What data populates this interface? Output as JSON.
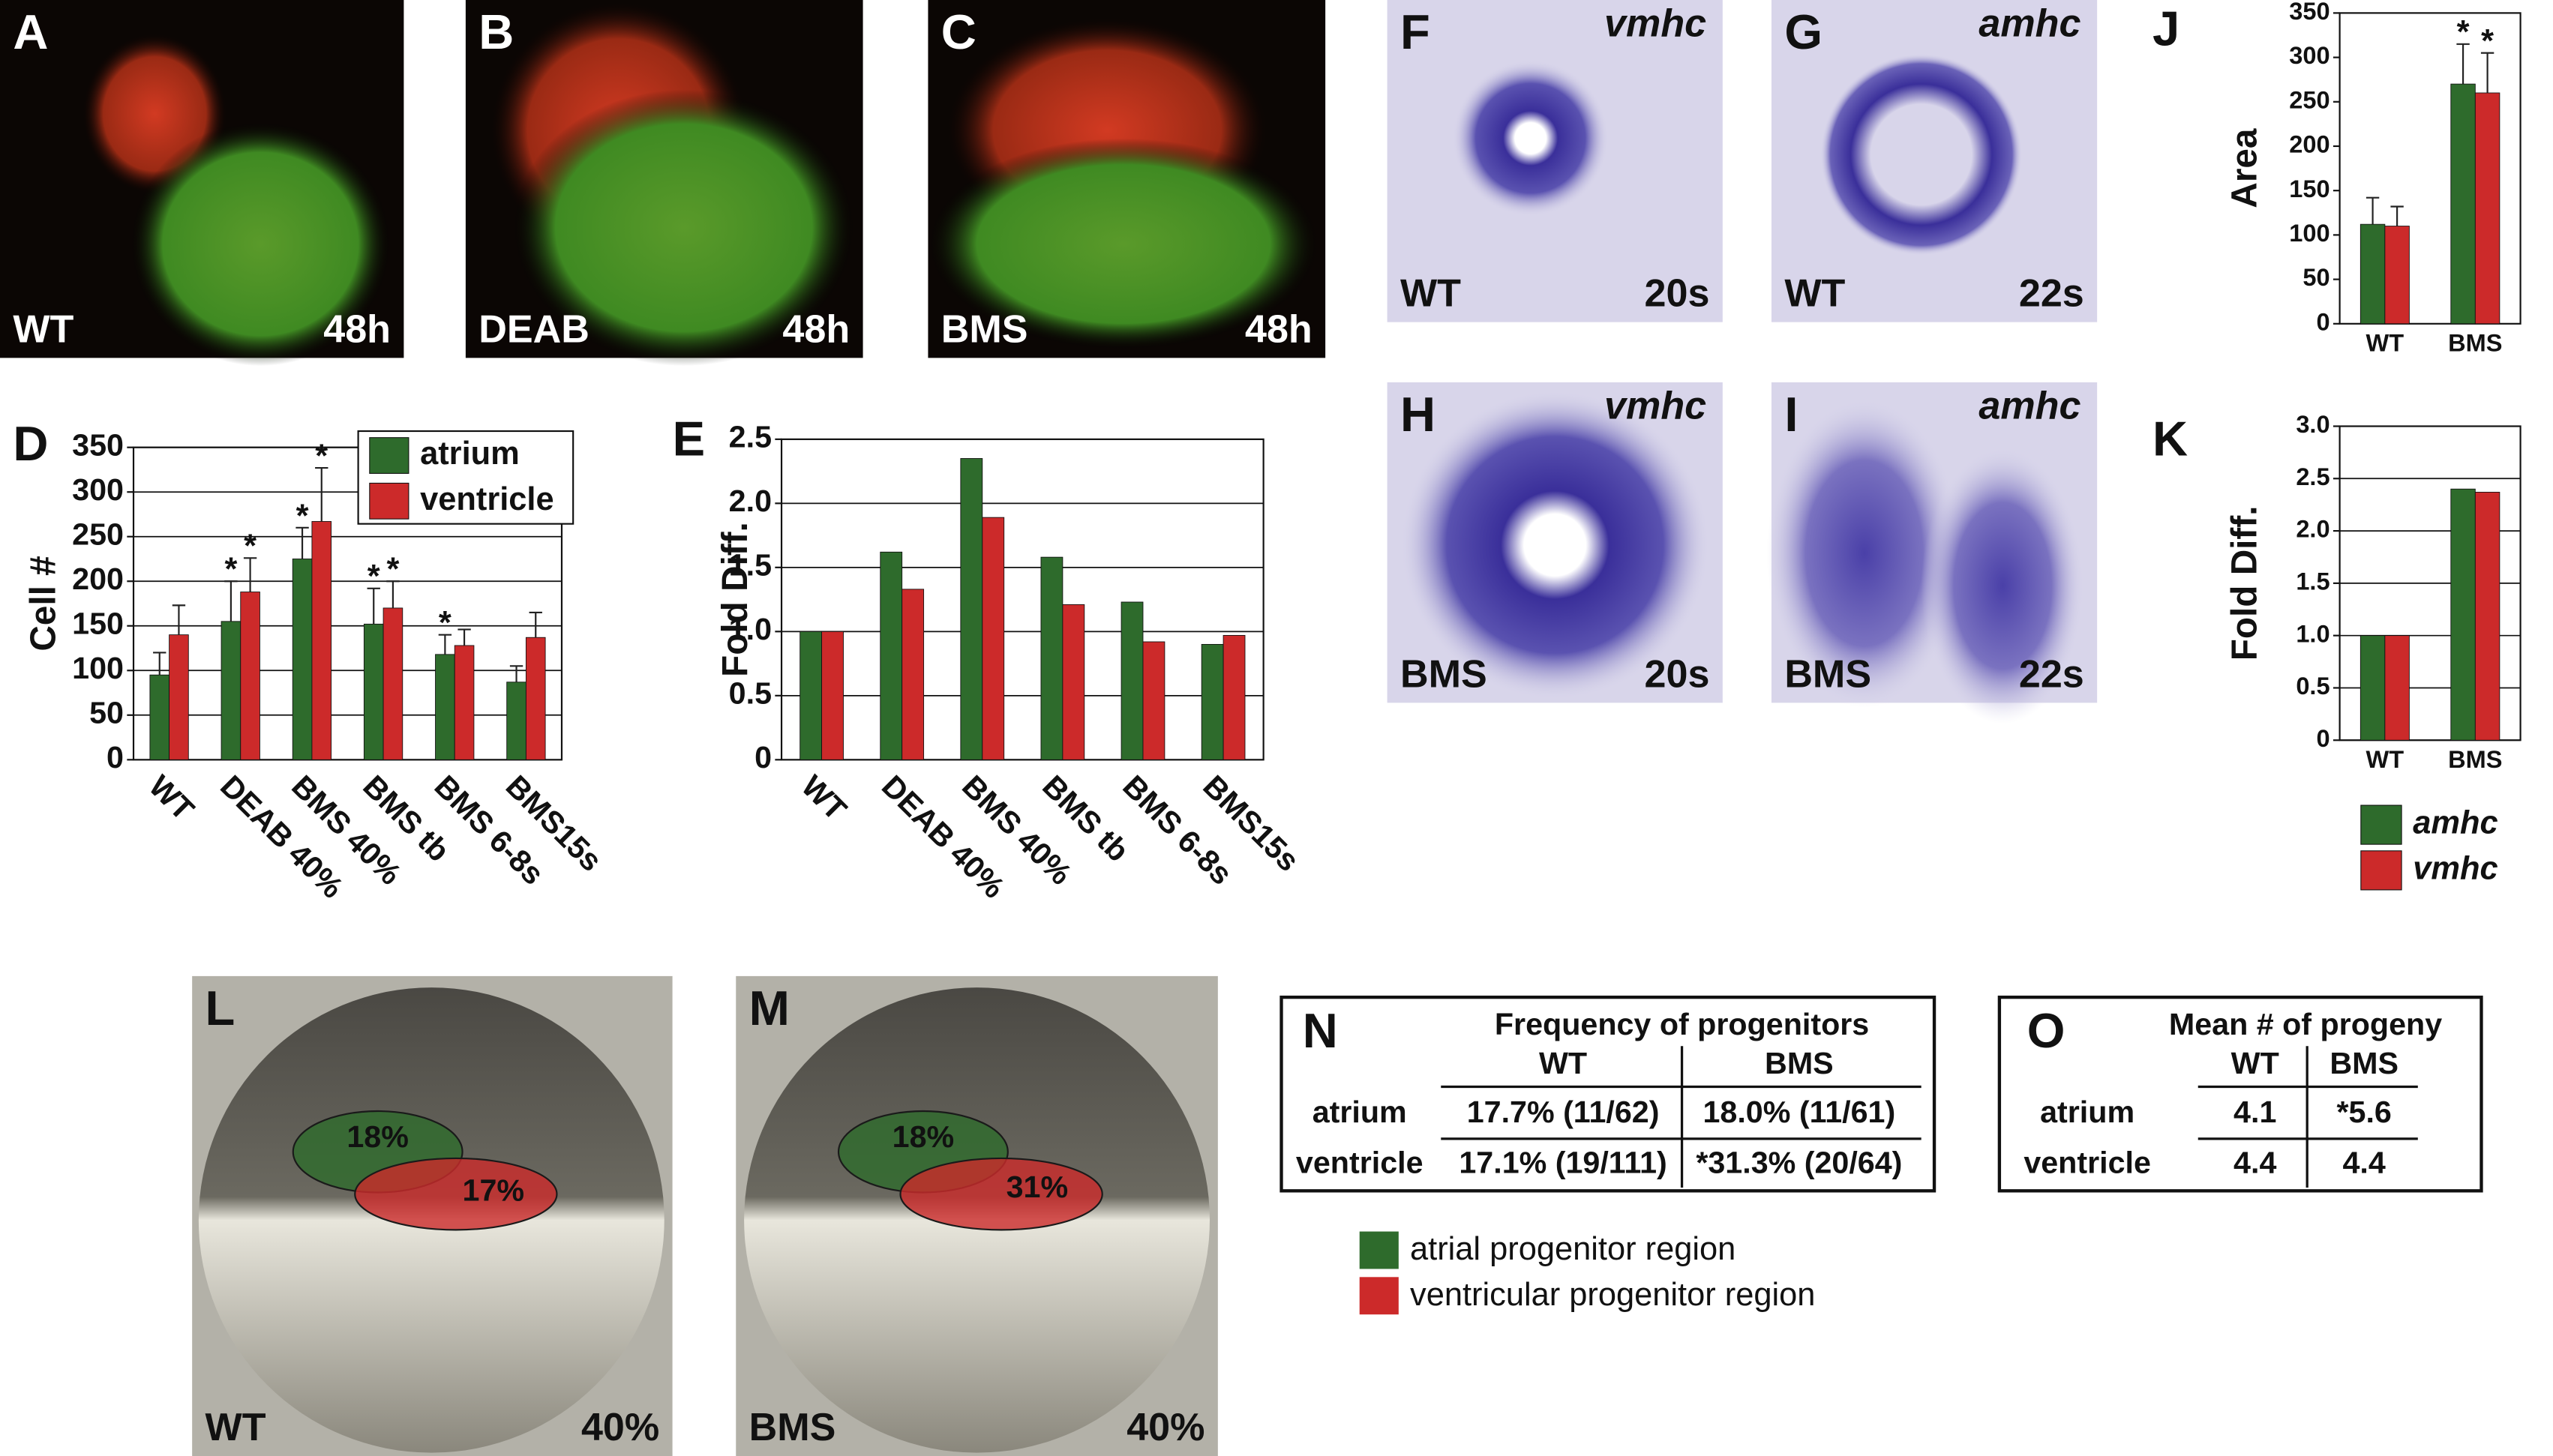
{
  "image_panels": [
    {
      "letter": "A",
      "left_label": "WT",
      "right_label": "48h"
    },
    {
      "letter": "B",
      "left_label": "DEAB",
      "right_label": "48h"
    },
    {
      "letter": "C",
      "left_label": "BMS",
      "right_label": "48h"
    },
    {
      "letter": "F",
      "gene": "vmhc",
      "left_label": "WT",
      "right_label": "20s"
    },
    {
      "letter": "G",
      "gene": "amhc",
      "left_label": "WT",
      "right_label": "22s"
    },
    {
      "letter": "H",
      "gene": "vmhc",
      "left_label": "BMS",
      "right_label": "20s"
    },
    {
      "letter": "I",
      "gene": "amhc",
      "left_label": "BMS",
      "right_label": "22s"
    },
    {
      "letter": "L",
      "left_label": "WT",
      "right_label": "40%",
      "regions": [
        "18%",
        "17%"
      ]
    },
    {
      "letter": "M",
      "left_label": "BMS",
      "right_label": "40%",
      "regions": [
        "18%",
        "31%"
      ]
    }
  ],
  "chart_data": [
    {
      "type": "bar",
      "letter": "D",
      "y_label": "Cell #",
      "categories": [
        "WT",
        "DEAB 40%",
        "BMS 40%",
        "BMS tb",
        "BMS 6-8s",
        "BMS15s"
      ],
      "series": [
        {
          "name": "atrium",
          "color": "#2e6b2c",
          "values": [
            95,
            155,
            225,
            152,
            118,
            87
          ],
          "errors": [
            25,
            45,
            35,
            40,
            22,
            18
          ],
          "significant": [
            false,
            true,
            true,
            true,
            true,
            false
          ]
        },
        {
          "name": "ventricle",
          "color": "#cc2a2a",
          "values": [
            140,
            188,
            267,
            170,
            128,
            137
          ],
          "errors": [
            33,
            38,
            60,
            30,
            18,
            28
          ],
          "significant": [
            false,
            true,
            true,
            true,
            false,
            false
          ]
        }
      ],
      "significance_mark": "*",
      "ylim": [
        0,
        350
      ],
      "yticks": [
        0,
        50,
        100,
        150,
        200,
        250,
        300,
        350
      ],
      "grid": true,
      "legend": "upper right"
    },
    {
      "type": "bar",
      "letter": "E",
      "y_label": "Fold Diff.",
      "categories": [
        "WT",
        "DEAB 40%",
        "BMS 40%",
        "BMS tb",
        "BMS 6-8s",
        "BMS15s"
      ],
      "series": [
        {
          "color": "#2e6b2c",
          "values": [
            1.0,
            1.62,
            2.35,
            1.58,
            1.23,
            0.9
          ]
        },
        {
          "color": "#cc2a2a",
          "values": [
            1.0,
            1.33,
            1.89,
            1.21,
            0.92,
            0.97
          ]
        }
      ],
      "ylim": [
        0,
        2.5
      ],
      "yticks": [
        0,
        0.5,
        {
          "value": 1,
          "label": "1.0"
        },
        1.5,
        {
          "value": 2,
          "label": "2.0"
        },
        2.5
      ],
      "grid": true
    },
    {
      "type": "bar",
      "letter": "J",
      "y_label": "Area",
      "categories": [
        "WT",
        "BMS"
      ],
      "series": [
        {
          "color": "#2e6b2c",
          "values": [
            112,
            270
          ],
          "errors": [
            30,
            45
          ],
          "significant": [
            false,
            true
          ]
        },
        {
          "color": "#cc2a2a",
          "values": [
            110,
            260
          ],
          "errors": [
            22,
            45
          ],
          "significant": [
            false,
            true
          ]
        }
      ],
      "significance_mark": "*",
      "ylim": [
        0,
        350
      ],
      "yticks": [
        0,
        50,
        100,
        150,
        200,
        250,
        300,
        350
      ],
      "grid": false
    },
    {
      "type": "bar",
      "letter": "K",
      "y_label": "Fold Diff.",
      "categories": [
        "WT",
        "BMS"
      ],
      "series": [
        {
          "name": "amhc",
          "color": "#2e6b2c",
          "values": [
            1.0,
            2.4
          ]
        },
        {
          "name": "vmhc",
          "color": "#cc2a2a",
          "values": [
            1.0,
            2.37
          ]
        }
      ],
      "ylim": [
        0,
        3
      ],
      "yticks": [
        {
          "value": 0,
          "label": "0"
        },
        0.5,
        {
          "value": 1,
          "label": "1.0"
        },
        1.5,
        {
          "value": 2,
          "label": "2.0"
        },
        2.5,
        {
          "value": 3,
          "label": "3.0"
        }
      ],
      "grid": true,
      "legend": "below"
    }
  ],
  "tables": [
    {
      "letter": "N",
      "title": "Frequency of progenitors",
      "columns": [
        "WT",
        "BMS"
      ],
      "rows": [
        {
          "label": "atrium",
          "cells": [
            "17.7% (11/62)",
            "18.0% (11/61)"
          ]
        },
        {
          "label": "ventricle",
          "cells": [
            "17.1% (19/111)",
            "*31.3% (20/64)"
          ]
        }
      ]
    },
    {
      "letter": "O",
      "title": "Mean # of progeny",
      "columns": [
        "WT",
        "BMS"
      ],
      "rows": [
        {
          "label": "atrium",
          "cells": [
            "4.1",
            "*5.6"
          ]
        },
        {
          "label": "ventricle",
          "cells": [
            "4.4",
            "4.4"
          ]
        }
      ]
    }
  ],
  "region_legend": [
    {
      "label": "atrial progenitor region",
      "color": "#2e6b2c"
    },
    {
      "label": "ventricular progenitor region",
      "color": "#cc2a2a"
    }
  ]
}
